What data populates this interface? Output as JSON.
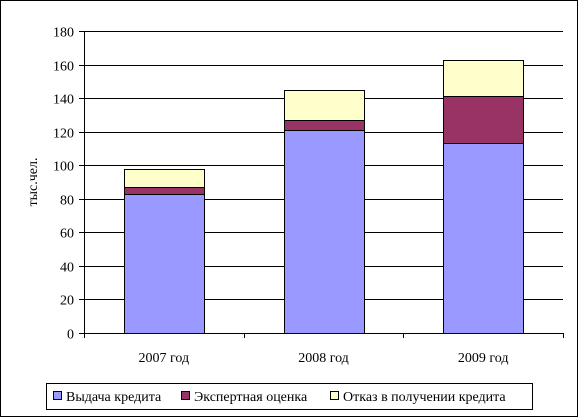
{
  "chart_data": {
    "type": "bar",
    "stacked": true,
    "title": "",
    "xlabel": "",
    "ylabel": "тыс.чел.",
    "ylim": [
      0,
      180
    ],
    "yticks": [
      0,
      20,
      40,
      60,
      80,
      100,
      120,
      140,
      160,
      180
    ],
    "grid": true,
    "legend_position": "bottom",
    "categories": [
      "2007 год",
      "2008 год",
      "2009 год"
    ],
    "series": [
      {
        "name": "Выдача кредита",
        "values": [
          83,
          121,
          113
        ],
        "color": "#9999ff"
      },
      {
        "name": "Экспертная оценка",
        "values": [
          4,
          6,
          28
        ],
        "color": "#993366"
      },
      {
        "name": "Отказ в получении кредита",
        "values": [
          11,
          18,
          22
        ],
        "color": "#ffffcc"
      }
    ]
  }
}
